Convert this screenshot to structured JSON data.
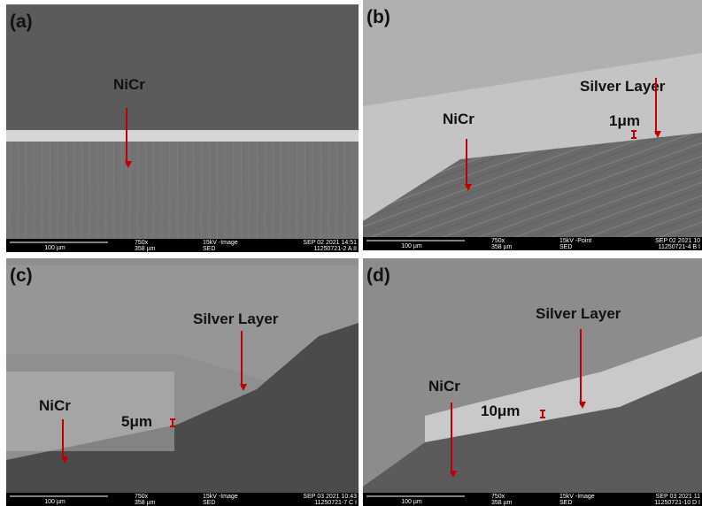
{
  "panels": [
    {
      "label": "(a)",
      "annotations": [
        "NiCr"
      ],
      "scale_bar": "100 µm",
      "magnification": "750x",
      "field_width": "358 µm",
      "mode": "15kV -Image",
      "detector": "SED",
      "date": "SEP 02 2021 14:51",
      "sample": "11250721-2 A II"
    },
    {
      "label": "(b)",
      "annotations": [
        "Silver Layer",
        "NiCr",
        "1μm"
      ],
      "scale_bar": "100 µm",
      "magnification": "750x",
      "field_width": "358 µm",
      "mode": "15kV -Point",
      "detector": "SED",
      "date": "SEP 02 2021 10",
      "sample": "11250721-4 B I"
    },
    {
      "label": "(c)",
      "annotations": [
        "Silver Layer",
        "NiCr",
        "5μm"
      ],
      "scale_bar": "100 µm",
      "magnification": "750x",
      "field_width": "358 µm",
      "mode": "15kV -Image",
      "detector": "SED",
      "date": "SEP 03 2021 10:43",
      "sample": "11250721-7 C I"
    },
    {
      "label": "(d)",
      "annotations": [
        "Silver Layer",
        "NiCr",
        "10μm"
      ],
      "scale_bar": "100 µm",
      "magnification": "750x",
      "field_width": "358 µm",
      "mode": "15kV -Image",
      "detector": "SED",
      "date": "SEP 03 2021 11",
      "sample": "11250721-10 D I"
    }
  ]
}
